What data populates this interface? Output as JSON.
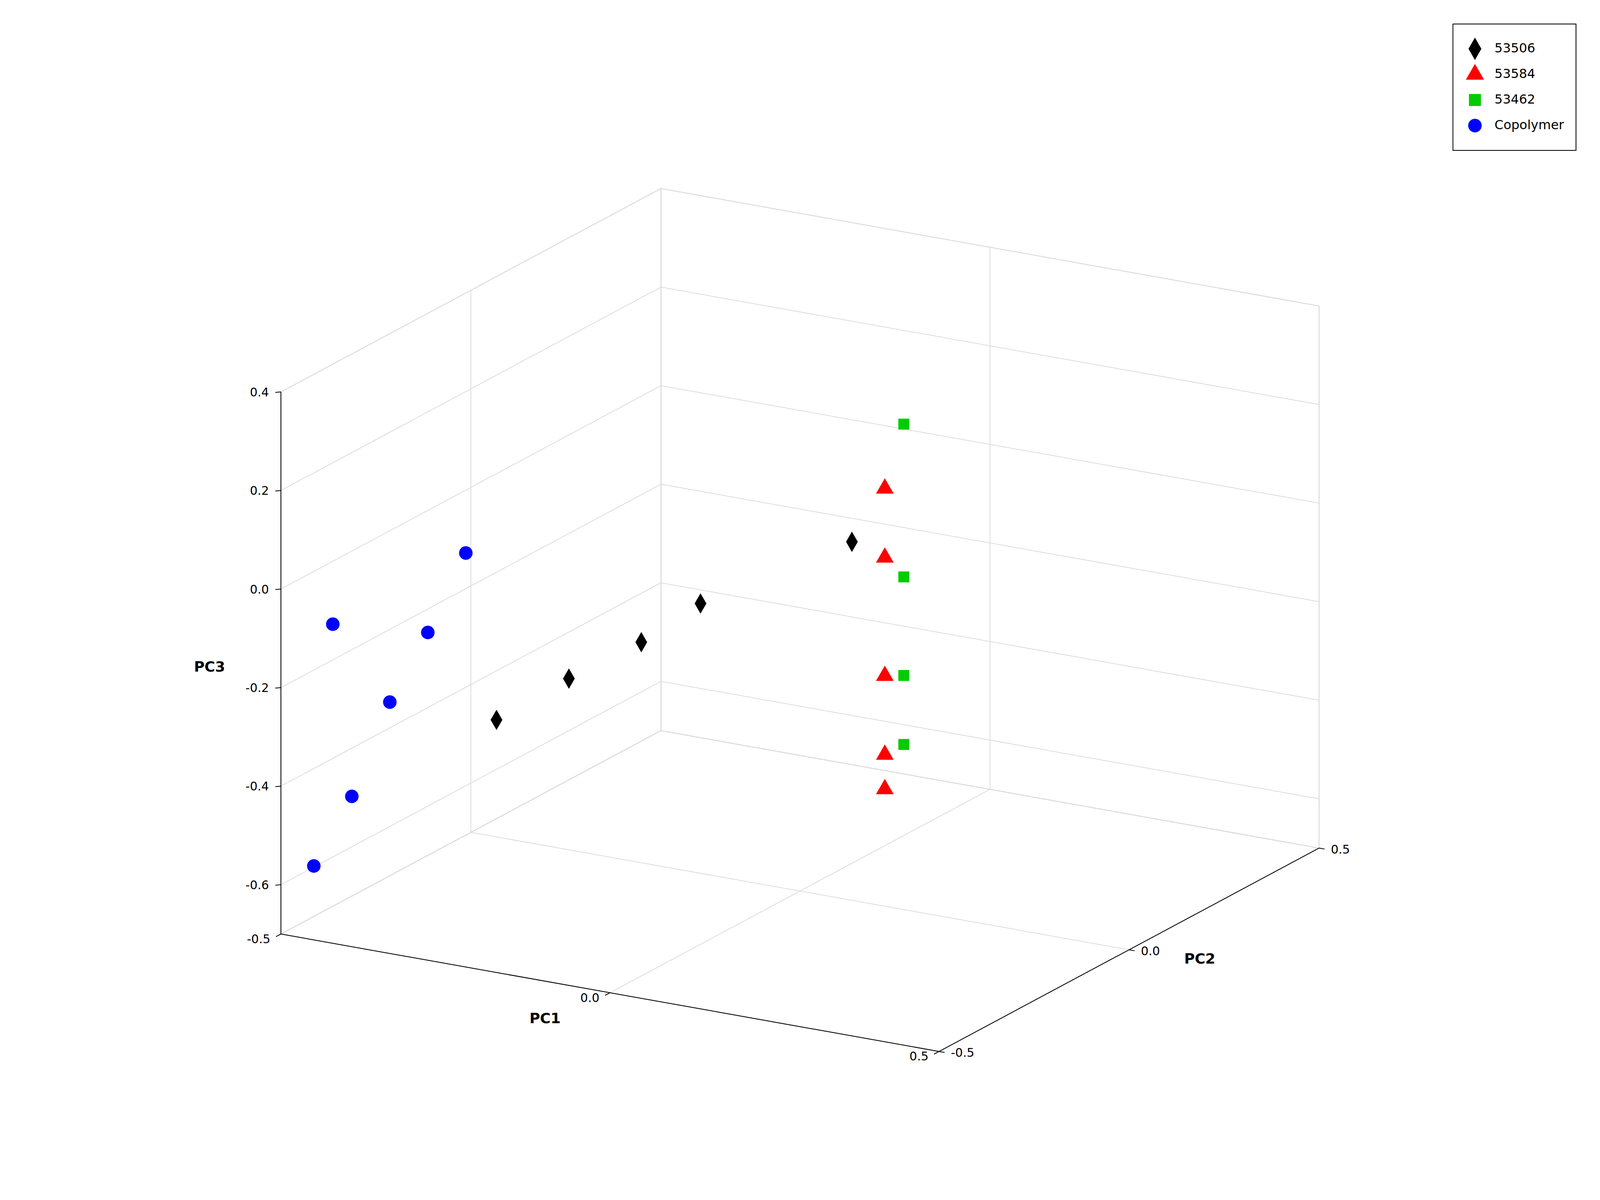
{
  "chart_data": {
    "type": "scatter3d",
    "xlabel": "PC1",
    "ylabel": "PC2",
    "zlabel": "PC3",
    "xlim": [
      -0.5,
      0.5
    ],
    "ylim": [
      -0.5,
      0.5
    ],
    "zlim": [
      -0.7,
      0.4
    ],
    "xticks": [
      -0.5,
      {
        "value": 0,
        "label": "0.0"
      },
      0.5
    ],
    "yticks": [
      -0.5,
      {
        "value": 0,
        "label": "0.0"
      },
      0.5
    ],
    "zticks": [
      -0.6,
      -0.4,
      -0.2,
      {
        "value": 0,
        "label": "0.0"
      },
      0.2,
      0.4
    ],
    "grid": true,
    "legend": "upper right",
    "series": [
      {
        "name": "53506",
        "color": "#000000",
        "marker": "diamond",
        "x": [
          0.05,
          -0.18,
          -0.27,
          -0.38,
          -0.49
        ],
        "y": [
          0.05,
          0.05,
          0.05,
          0.05,
          0.05
        ],
        "z": [
          0.0,
          -0.18,
          -0.28,
          -0.38,
          -0.49
        ]
      },
      {
        "name": "53584",
        "color": "#ff0000",
        "marker": "triangle",
        "x": [
          0.1,
          0.1,
          0.1,
          0.1,
          0.1
        ],
        "y": [
          0.05,
          0.05,
          0.05,
          0.05,
          0.05
        ],
        "z": [
          0.12,
          -0.02,
          -0.26,
          -0.42,
          -0.49
        ]
      },
      {
        "name": "53462",
        "color": "#00cc00",
        "marker": "square",
        "x": [
          0.1,
          0.1,
          0.1,
          0.1
        ],
        "y": [
          0.1,
          0.1,
          0.1,
          0.1
        ],
        "z": [
          0.23,
          -0.08,
          -0.28,
          -0.42
        ]
      },
      {
        "name": "Copolymer",
        "color": "#0000ff",
        "marker": "circle",
        "x": [
          -0.45,
          -0.45,
          -0.45,
          -0.45,
          -0.45,
          -0.45
        ],
        "y": [
          -0.1,
          -0.2,
          -0.3,
          -0.4,
          -0.45,
          -0.5
        ],
        "z": [
          -0.08,
          -0.2,
          -0.3,
          -0.45,
          -0.08,
          -0.55
        ]
      }
    ]
  }
}
